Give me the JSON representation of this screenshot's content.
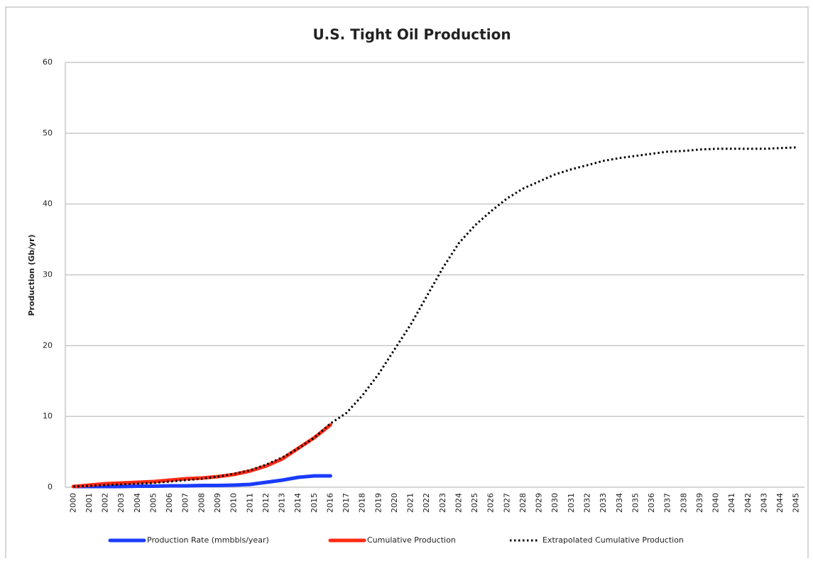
{
  "chart_data": {
    "type": "line",
    "title": "U.S. Tight Oil Production",
    "y_label": "Production (Gb/yr)",
    "categories": [
      "2000",
      "2001",
      "2002",
      "2003",
      "2004",
      "2005",
      "2006",
      "2007",
      "2008",
      "2009",
      "2010",
      "2011",
      "2012",
      "2013",
      "2014",
      "2015",
      "2016",
      "2017",
      "2018",
      "2019",
      "2020",
      "2021",
      "2022",
      "2023",
      "2024",
      "2025",
      "2026",
      "2027",
      "2028",
      "2029",
      "2030",
      "2031",
      "2032",
      "2033",
      "2034",
      "2035",
      "2036",
      "2037",
      "2038",
      "2039",
      "2040",
      "2041",
      "2042",
      "2043",
      "2044",
      "2045"
    ],
    "series": [
      {
        "name": "Production Rate (mmbbls/year)",
        "color": "#1a3bff",
        "style": "solid",
        "values": [
          0.1,
          0.1,
          0.1,
          0.1,
          0.15,
          0.15,
          0.2,
          0.2,
          0.25,
          0.25,
          0.3,
          0.4,
          0.7,
          1.0,
          1.4,
          1.6,
          1.6,
          null,
          null,
          null,
          null,
          null,
          null,
          null,
          null,
          null,
          null,
          null,
          null,
          null,
          null,
          null,
          null,
          null,
          null,
          null,
          null,
          null,
          null,
          null,
          null,
          null,
          null,
          null,
          null,
          null
        ]
      },
      {
        "name": "Cumulative Production",
        "color": "#ff2a12",
        "style": "solid",
        "values": [
          0.1,
          0.3,
          0.5,
          0.6,
          0.7,
          0.8,
          1.0,
          1.2,
          1.3,
          1.5,
          1.8,
          2.3,
          3.0,
          4.0,
          5.5,
          7.0,
          8.8,
          null,
          null,
          null,
          null,
          null,
          null,
          null,
          null,
          null,
          null,
          null,
          null,
          null,
          null,
          null,
          null,
          null,
          null,
          null,
          null,
          null,
          null,
          null,
          null,
          null,
          null,
          null,
          null,
          null
        ]
      },
      {
        "name": "Extrapolated Cumulative Production",
        "color": "#000000",
        "style": "dotted",
        "values": [
          0.1,
          0.2,
          0.3,
          0.4,
          0.5,
          0.6,
          0.8,
          1.0,
          1.2,
          1.5,
          1.9,
          2.4,
          3.2,
          4.2,
          5.5,
          7.0,
          9.0,
          10.5,
          13,
          16,
          19.5,
          23,
          27,
          31,
          34.5,
          37,
          39,
          40.8,
          42.2,
          43.2,
          44.2,
          44.9,
          45.5,
          46.1,
          46.5,
          46.8,
          47.1,
          47.4,
          47.5,
          47.7,
          47.8,
          47.8,
          47.8,
          47.8,
          47.9,
          48.0
        ]
      }
    ],
    "ylim": [
      0,
      60
    ],
    "yticks": [
      0,
      10,
      20,
      30,
      40,
      50,
      60
    ],
    "grid": true,
    "legend": "bottom"
  }
}
